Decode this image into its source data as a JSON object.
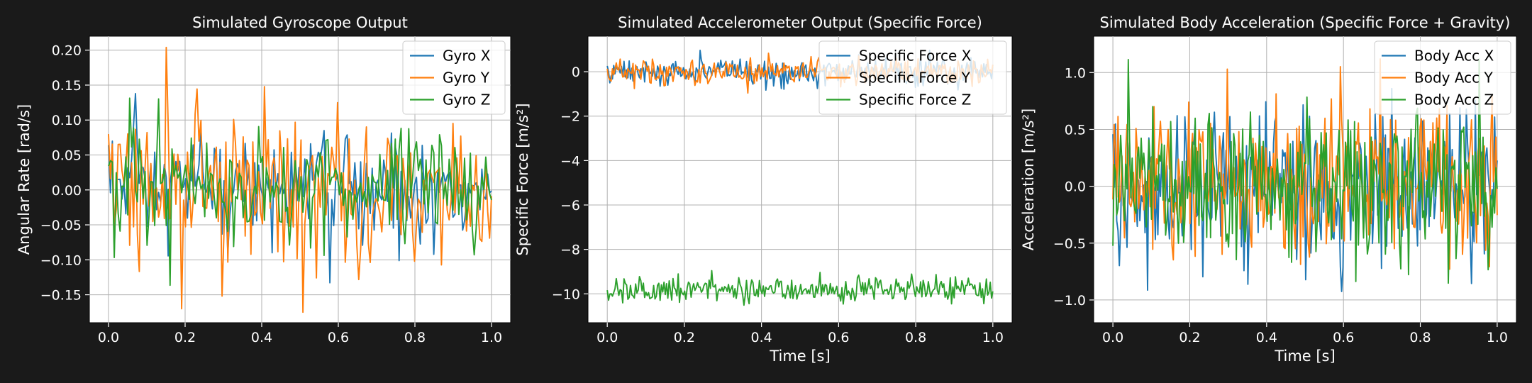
{
  "figure": {
    "background": "#1a1a1a",
    "plot_background": "#ffffff",
    "text_color": "#ffffff",
    "grid_color": "#b0b0b0"
  },
  "chart_data": [
    {
      "type": "line",
      "title": "Simulated Gyroscope Output",
      "xlabel": "",
      "ylabel": "Angular Rate [rad/s]",
      "xlim": [
        -0.05,
        1.05
      ],
      "ylim": [
        -0.19,
        0.22
      ],
      "xticks": [
        0.0,
        0.2,
        0.4,
        0.6,
        0.8,
        1.0
      ],
      "xtick_labels": [
        "0.0",
        "0.2",
        "0.4",
        "0.6",
        "0.8",
        "1.0"
      ],
      "yticks": [
        -0.15,
        -0.1,
        -0.05,
        0.0,
        0.05,
        0.1,
        0.15,
        0.2
      ],
      "ytick_labels": [
        "−0.15",
        "−0.10",
        "−0.05",
        "0.00",
        "0.05",
        "0.10",
        "0.15",
        "0.20"
      ],
      "grid": true,
      "legend_position": "top-right",
      "series": [
        {
          "name": "Gyro X",
          "color": "#1f77b4",
          "x_start": 0.0,
          "x_end": 1.0,
          "n_points": 200,
          "mean": 0.0,
          "noise_std": 0.045
        },
        {
          "name": "Gyro Y",
          "color": "#ff7f0e",
          "x_start": 0.0,
          "x_end": 1.0,
          "n_points": 200,
          "mean": 0.0,
          "noise_std": 0.055,
          "peaks": [
            [
              0.15,
              0.204
            ],
            [
              0.19,
              -0.17
            ],
            [
              0.51,
              -0.175
            ]
          ]
        },
        {
          "name": "Gyro Z",
          "color": "#2ca02c",
          "x_start": 0.0,
          "x_end": 1.0,
          "n_points": 200,
          "mean": 0.0,
          "noise_std": 0.045
        }
      ]
    },
    {
      "type": "line",
      "title": "Simulated Accelerometer Output (Specific Force)",
      "xlabel": "Time [s]",
      "ylabel": "Specific Force [m/s²]",
      "xlim": [
        -0.05,
        1.05
      ],
      "ylim": [
        -11.3,
        1.6
      ],
      "xticks": [
        0.0,
        0.2,
        0.4,
        0.6,
        0.8,
        1.0
      ],
      "xtick_labels": [
        "0.0",
        "0.2",
        "0.4",
        "0.6",
        "0.8",
        "1.0"
      ],
      "yticks": [
        -10,
        -8,
        -6,
        -4,
        -2,
        0
      ],
      "ytick_labels": [
        "−10",
        "−8",
        "−6",
        "−4",
        "−2",
        "0"
      ],
      "grid": true,
      "legend_position": "top-right",
      "series": [
        {
          "name": "Specific Force X",
          "color": "#1f77b4",
          "x_start": 0.0,
          "x_end": 1.0,
          "n_points": 300,
          "mean": 0.0,
          "noise_std": 0.3
        },
        {
          "name": "Specific Force Y",
          "color": "#ff7f0e",
          "x_start": 0.0,
          "x_end": 1.0,
          "n_points": 300,
          "mean": 0.0,
          "noise_std": 0.3
        },
        {
          "name": "Specific Force Z",
          "color": "#2ca02c",
          "x_start": 0.0,
          "x_end": 1.0,
          "n_points": 300,
          "mean": -9.8,
          "noise_std": 0.3
        }
      ]
    },
    {
      "type": "line",
      "title": "Simulated Body Acceleration (Specific Force + Gravity)",
      "xlabel": "Time [s]",
      "ylabel": "Acceleration [m/s²]",
      "xlim": [
        -0.05,
        1.05
      ],
      "ylim": [
        -1.2,
        1.32
      ],
      "xticks": [
        0.0,
        0.2,
        0.4,
        0.6,
        0.8,
        1.0
      ],
      "xtick_labels": [
        "0.0",
        "0.2",
        "0.4",
        "0.6",
        "0.8",
        "1.0"
      ],
      "yticks": [
        -1.0,
        -0.5,
        0.0,
        0.5,
        1.0
      ],
      "ytick_labels": [
        "−1.0",
        "−0.5",
        "0.0",
        "0.5",
        "1.0"
      ],
      "grid": true,
      "legend_position": "top-right",
      "series": [
        {
          "name": "Body Acc X",
          "color": "#1f77b4",
          "x_start": 0.0,
          "x_end": 1.0,
          "n_points": 300,
          "mean": 0.0,
          "noise_std": 0.35
        },
        {
          "name": "Body Acc Y",
          "color": "#ff7f0e",
          "x_start": 0.0,
          "x_end": 1.0,
          "n_points": 300,
          "mean": 0.0,
          "noise_std": 0.35
        },
        {
          "name": "Body Acc Z",
          "color": "#2ca02c",
          "x_start": 0.0,
          "x_end": 1.0,
          "n_points": 300,
          "mean": 0.0,
          "noise_std": 0.35
        }
      ]
    }
  ]
}
